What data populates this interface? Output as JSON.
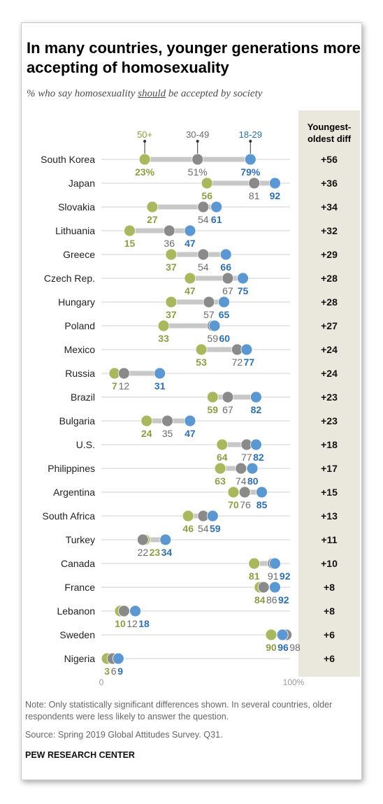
{
  "title": "In many countries, younger generations more accepting of homosexuality",
  "subtitle": {
    "before": "% who say homosexuality ",
    "emph": "should",
    "after": " be accepted by society"
  },
  "colors": {
    "age_50_plus": "#a9b85f",
    "age_30_49": "#8a8a8a",
    "age_18_29": "#5b97d0",
    "diff_column_bg": "#eae8dc"
  },
  "chart_data": {
    "type": "dot-plot",
    "title": "In many countries, younger generations more accepting of homosexuality",
    "subtitle": "% who say homosexuality should be accepted by society",
    "categories": [
      "South Korea",
      "Japan",
      "Slovakia",
      "Lithuania",
      "Greece",
      "Czech Rep.",
      "Hungary",
      "Poland",
      "Mexico",
      "Russia",
      "Brazil",
      "Bulgaria",
      "U.S.",
      "Philippines",
      "Argentina",
      "South Africa",
      "Turkey",
      "Canada",
      "France",
      "Lebanon",
      "Sweden",
      "Nigeria"
    ],
    "series": [
      {
        "name": "50+",
        "values": [
          23,
          56,
          27,
          15,
          37,
          47,
          37,
          33,
          53,
          7,
          59,
          24,
          64,
          63,
          70,
          46,
          23,
          81,
          84,
          10,
          90,
          3
        ]
      },
      {
        "name": "30-49",
        "values": [
          51,
          81,
          54,
          36,
          54,
          67,
          57,
          59,
          72,
          12,
          67,
          35,
          77,
          74,
          76,
          54,
          22,
          91,
          86,
          12,
          98,
          6
        ]
      },
      {
        "name": "18-29",
        "values": [
          79,
          92,
          61,
          47,
          66,
          75,
          65,
          60,
          77,
          31,
          82,
          47,
          82,
          80,
          85,
          59,
          34,
          92,
          92,
          18,
          96,
          9
        ]
      }
    ],
    "diff_header": "Youngest-oldest diff",
    "diffs": [
      "+56",
      "+36",
      "+34",
      "+32",
      "+29",
      "+28",
      "+28",
      "+27",
      "+24",
      "+24",
      "+23",
      "+23",
      "+18",
      "+17",
      "+15",
      "+13",
      "+11",
      "+10",
      "+8",
      "+8",
      "+6",
      "+6"
    ],
    "xlim": [
      0,
      100
    ],
    "xticks": [
      "0",
      "100%"
    ]
  },
  "note": "Note: Only statistically significant differences shown. In several countries, older respondents were less likely to answer the question.",
  "source": "Source: Spring 2019 Global Attitudes Survey. Q31.",
  "brand": "PEW RESEARCH CENTER"
}
